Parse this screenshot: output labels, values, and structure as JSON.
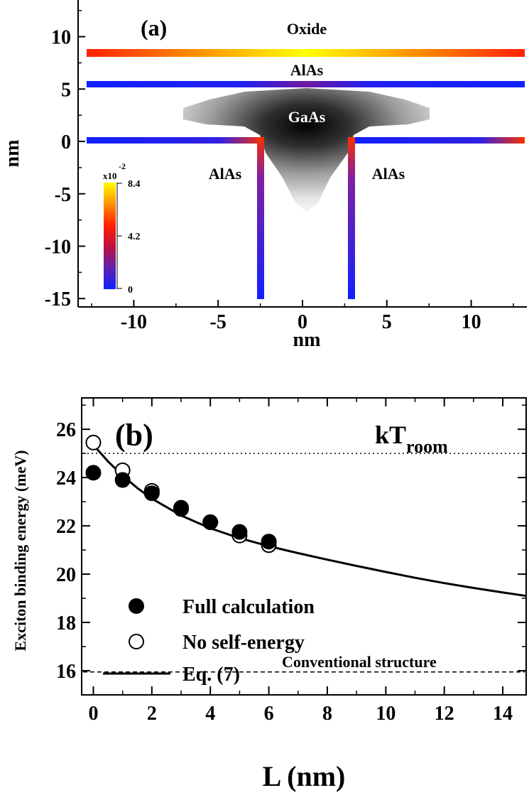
{
  "panel_a": {
    "label": "(a)",
    "xlabel": "nm",
    "ylabel": "nm",
    "x_ticks": [
      "-10",
      "-5",
      "0",
      "5",
      "10"
    ],
    "y_ticks": [
      "10",
      "5",
      "0",
      "-5",
      "-10",
      "-15"
    ],
    "region_labels": {
      "oxide": "Oxide",
      "alas_top": "AlAs",
      "gaas": "GaAs",
      "alas_left": "AlAs",
      "alas_right": "AlAs"
    },
    "colorbar": {
      "multiplier": "x10",
      "exponent": "-2",
      "max_label": "8.4",
      "mid_label": "4.2",
      "min_label": "0",
      "colors": [
        "#1020ff",
        "#6020b0",
        "#c01040",
        "#ff2000",
        "#ff9000",
        "#ffff00"
      ]
    }
  },
  "chart_data": [
    {
      "type": "heatmap",
      "title": "(a)",
      "xlabel": "nm",
      "ylabel": "nm",
      "xlim": [
        -13.3,
        13.3
      ],
      "ylim": [
        -15.8,
        13.5
      ],
      "colorbar_range": [
        0,
        8.4
      ],
      "colorbar_unit_multiplier": "x10^-2",
      "interfaces": [
        {
          "name": "oxide-AlAs interface",
          "y": 8.4,
          "x": [
            -13.3,
            13.3
          ],
          "value_range": [
            4.2,
            8.4
          ]
        },
        {
          "name": "AlAs-GaAs top interface",
          "y": 5.4,
          "x": [
            -13.3,
            13.3
          ],
          "value_range": [
            0,
            1.5
          ]
        },
        {
          "name": "AlAs-GaAs bottom interface",
          "y": 0,
          "x": [
            -13.3,
            13.3
          ],
          "value_range": [
            0,
            3.5
          ]
        },
        {
          "name": "left wall",
          "x": -2.8,
          "y": [
            -15.8,
            0
          ]
        },
        {
          "name": "right wall",
          "x": 2.8,
          "y": [
            -15.8,
            0
          ]
        }
      ]
    },
    {
      "type": "scatter",
      "title": "(b)",
      "xlabel": "L (nm)",
      "ylabel": "Exciton binding energy (meV)",
      "xlim": [
        -0.4,
        14.8
      ],
      "ylim": [
        15,
        27.3
      ],
      "x_ticks": [
        0,
        2,
        4,
        6,
        8,
        10,
        12,
        14
      ],
      "y_ticks": [
        16,
        18,
        20,
        22,
        24,
        26
      ],
      "series": [
        {
          "name": "Full calculation",
          "marker": "filled-circle",
          "x": [
            0,
            1,
            2,
            3,
            4,
            5,
            6
          ],
          "y": [
            24.2,
            23.9,
            23.35,
            22.7,
            22.15,
            21.75,
            21.35
          ]
        },
        {
          "name": "No self-energy",
          "marker": "open-circle",
          "x": [
            0,
            1,
            2,
            3,
            4,
            5,
            6
          ],
          "y": [
            25.45,
            24.3,
            23.45,
            22.75,
            22.15,
            21.6,
            21.2
          ]
        },
        {
          "name": "Eq. (7)",
          "marker": "line",
          "x": [
            0,
            0.5,
            1,
            1.5,
            2,
            3,
            4,
            5,
            6,
            7,
            8,
            9,
            10,
            11,
            12,
            13,
            14,
            14.8
          ],
          "y": [
            25.35,
            24.67,
            24.08,
            23.57,
            23.13,
            22.43,
            21.9,
            21.49,
            21.16,
            20.87,
            20.6,
            20.34,
            20.09,
            19.85,
            19.63,
            19.43,
            19.24,
            19.1
          ]
        }
      ],
      "reference_lines": [
        {
          "name": "kT",
          "subscript": "room",
          "y": 25.0,
          "style": "dotted"
        },
        {
          "name": "Conventional structure",
          "y": 15.95,
          "style": "dashed"
        }
      ],
      "legend_position": "center-left"
    }
  ]
}
